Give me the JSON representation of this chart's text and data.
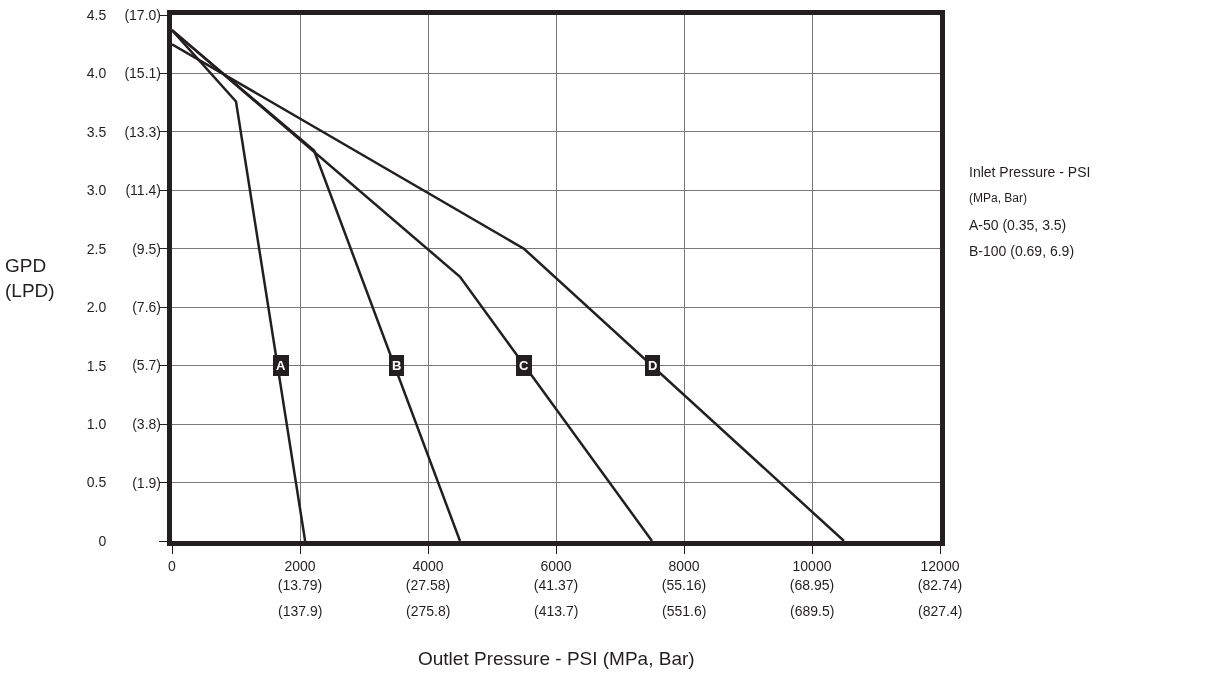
{
  "chart_data": {
    "type": "line",
    "xlabel": "Outlet Pressure - PSI (MPa, Bar)",
    "ylabel": "GPD\n(LPD)",
    "xlim": [
      0,
      12000
    ],
    "ylim": [
      0,
      4.5
    ],
    "xticks": [
      0,
      2000,
      4000,
      6000,
      8000,
      10000,
      12000
    ],
    "x2lim": [
      0,
      82.74
    ],
    "x2ticks": [
      {
        "value": 13.79,
        "label": "(13.79)"
      },
      {
        "value": 27.58,
        "label": "(27.58)"
      },
      {
        "value": 41.37,
        "label": "(41.37)"
      },
      {
        "value": 55.16,
        "label": "(55.16)"
      },
      {
        "value": 68.95,
        "label": "(68.95)"
      },
      {
        "value": 82.74,
        "label": "(82.74)"
      }
    ],
    "yticks": [
      0,
      0.5,
      {
        "value": 1,
        "label": "1.0"
      },
      1.5,
      {
        "value": 2,
        "label": "2.0"
      },
      2.5,
      {
        "value": 3,
        "label": "3.0"
      },
      3.5,
      {
        "value": 4,
        "label": "4.0"
      },
      4.5
    ],
    "y2lim": [
      0,
      17.03
    ],
    "y2ticks": [
      {
        "value": 1.89,
        "label": "(1.9)"
      },
      {
        "value": 3.79,
        "label": "(3.8)"
      },
      {
        "value": 5.68,
        "label": "(5.7)"
      },
      {
        "value": 7.57,
        "label": "(7.6)"
      },
      {
        "value": 9.46,
        "label": "(9.5)"
      },
      {
        "value": 11.36,
        "label": "(11.4)"
      },
      {
        "value": 13.25,
        "label": "(13.3)"
      },
      {
        "value": 15.14,
        "label": "(15.1)"
      },
      {
        "value": 17.03,
        "label": "(17.0)"
      }
    ],
    "grid": true,
    "marker": "none",
    "line_style": "solid",
    "series": [
      {
        "color": "#231f20",
        "x": [
          0,
          1000,
          2080
        ],
        "values": [
          4.37,
          3.76,
          0
        ]
      },
      {
        "color": "#231f20",
        "x": [
          0,
          2220,
          4500
        ],
        "values": [
          4.37,
          3.34,
          0
        ]
      },
      {
        "color": "#231f20",
        "x": [
          0,
          4500,
          7500
        ],
        "values": [
          4.37,
          2.26,
          0
        ]
      },
      {
        "color": "#231f20",
        "x": [
          0,
          5500,
          10500
        ],
        "values": [
          4.25,
          2.5,
          0
        ]
      }
    ],
    "annotations": [
      {
        "text": "A",
        "x": 1700,
        "y": 1.5
      },
      {
        "text": "B",
        "x": 3500,
        "y": 1.5
      },
      {
        "text": "C",
        "x": 5500,
        "y": 1.5
      },
      {
        "text": "D",
        "x": 7500,
        "y": 1.5
      },
      "Inlet Pressure - PSI",
      "(MPa, Bar)",
      "A-50 (0.35, 3.5)",
      "B-100 (0.69, 6.9)",
      "(137.9)",
      "(275.8)",
      "(413.7)",
      "(551.6)",
      "(689.5)",
      "(827.4)"
    ]
  }
}
